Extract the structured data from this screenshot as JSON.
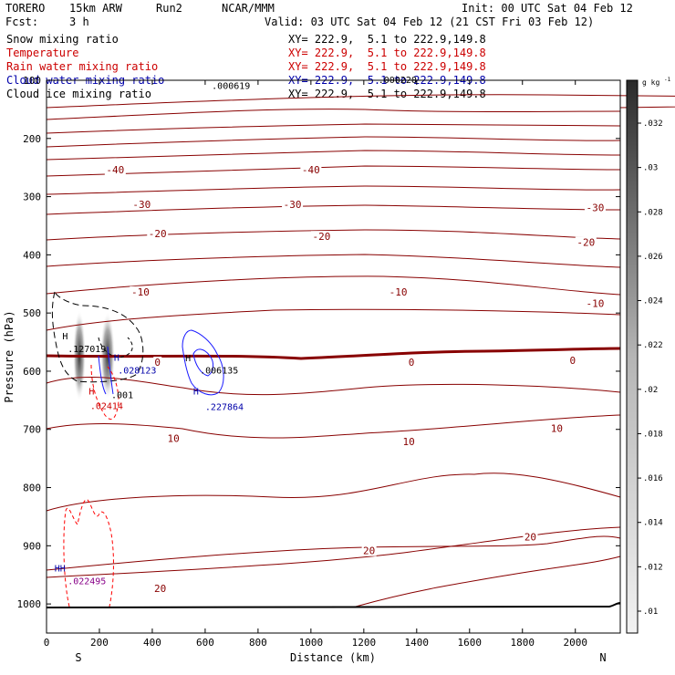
{
  "header": {
    "model": "TORERO",
    "res": "15km ARW",
    "run": "Run2",
    "org": "NCAR/MMM",
    "init": "Init: 00 UTC Sat 04 Feb 12",
    "fcst": "Fcst:",
    "fcst_hours": "3 h",
    "valid": "Valid: 03 UTC Sat 04 Feb 12 (21 CST Fri 03 Feb 12)"
  },
  "fields": [
    {
      "name": "Snow mixing ratio",
      "xy": "XY= 222.9,  5.1 to 222.9,149.8",
      "color": "#000000"
    },
    {
      "name": "Temperature",
      "xy": "XY= 222.9,  5.1 to 222.9,149.8",
      "color": "#cc0000"
    },
    {
      "name": "Rain water mixing ratio",
      "xy": "XY= 222.9,  5.1 to 222.9,149.8",
      "color": "#cc0000"
    },
    {
      "name": "Cloud water mixing ratio",
      "xy": "XY= 222.9,  5.1 to 222.9,149.8",
      "color": "#0000aa"
    },
    {
      "name": "Cloud ice mixing ratio",
      "xy": "XY= 222.9,  5.1 to 222.9,149.8",
      "color": "#000000"
    }
  ],
  "chart_data": {
    "type": "cross-section",
    "xlabel": "Distance (km)",
    "ylabel": "Pressure (hPa)",
    "xlim": [
      0,
      2170
    ],
    "ylim": [
      1050,
      100
    ],
    "x_ticks": [
      0,
      200,
      400,
      600,
      800,
      1000,
      1200,
      1400,
      1600,
      1800,
      2000
    ],
    "y_ticks": [
      1000,
      900,
      800,
      700,
      600,
      500,
      400,
      300,
      200,
      100
    ],
    "endpoint_left": "S",
    "endpoint_right": "N",
    "colorbar": {
      "unit": "g kg",
      "unit_exp": "-1",
      "ticks": [
        ".01",
        ".012",
        ".014",
        ".016",
        ".018",
        ".02",
        ".022",
        ".024",
        ".026",
        ".028",
        ".03",
        ".032"
      ]
    },
    "temperature_labels": [
      {
        "text": "-40",
        "x": 260,
        "p": 255
      },
      {
        "text": "-40",
        "x": 1000,
        "p": 255
      },
      {
        "text": "-30",
        "x": 360,
        "p": 315
      },
      {
        "text": "-30",
        "x": 930,
        "p": 315
      },
      {
        "text": "-30",
        "x": 2075,
        "p": 320
      },
      {
        "text": "-20",
        "x": 420,
        "p": 365
      },
      {
        "text": "-20",
        "x": 1040,
        "p": 370
      },
      {
        "text": "-20",
        "x": 2040,
        "p": 380
      },
      {
        "text": "-10",
        "x": 355,
        "p": 465
      },
      {
        "text": "-10",
        "x": 1330,
        "p": 465
      },
      {
        "text": "-10",
        "x": 2075,
        "p": 485
      },
      {
        "text": "0",
        "x": 420,
        "p": 586
      },
      {
        "text": "0",
        "x": 1380,
        "p": 586
      },
      {
        "text": "0",
        "x": 1990,
        "p": 583
      },
      {
        "text": "10",
        "x": 480,
        "p": 717
      },
      {
        "text": "10",
        "x": 1370,
        "p": 722
      },
      {
        "text": "10",
        "x": 1930,
        "p": 700
      },
      {
        "text": "20",
        "x": 1220,
        "p": 910
      },
      {
        "text": "20",
        "x": 1830,
        "p": 886
      },
      {
        "text": "20",
        "x": 430,
        "p": 975
      }
    ],
    "extrema_labels": [
      {
        "text": "H",
        "x": 60,
        "p": 545,
        "color": "#000000"
      },
      {
        "text": ".127019",
        "x": 80,
        "p": 567,
        "color": "#000000"
      },
      {
        "text": "H",
        "x": 255,
        "p": 582,
        "color": "#0000aa"
      },
      {
        "text": ".028123",
        "x": 270,
        "p": 604,
        "color": "#0000aa"
      },
      {
        "text": "H",
        "x": 160,
        "p": 640,
        "color": "#cc0000"
      },
      {
        "text": ".02414",
        "x": 165,
        "p": 665,
        "color": "#cc0000"
      },
      {
        "text": ".001",
        "x": 245,
        "p": 646,
        "color": "#000000"
      },
      {
        "text": "H",
        "x": 525,
        "p": 583,
        "color": "#000000"
      },
      {
        "text": ".006135",
        "x": 580,
        "p": 604,
        "color": "#000000"
      },
      {
        "text": "H",
        "x": 555,
        "p": 640,
        "color": "#0000aa"
      },
      {
        "text": ".227864",
        "x": 600,
        "p": 667,
        "color": "#0000aa"
      },
      {
        "text": ".000619",
        "x": 625,
        "p": 115,
        "color": "#000000"
      },
      {
        "text": ".000220",
        "x": 1255,
        "p": 105,
        "color": "#000000"
      },
      {
        "text": "HH",
        "x": 30,
        "p": 944,
        "color": "#0000aa"
      },
      {
        "text": ".022495",
        "x": 80,
        "p": 966,
        "color": "#880088"
      }
    ]
  }
}
